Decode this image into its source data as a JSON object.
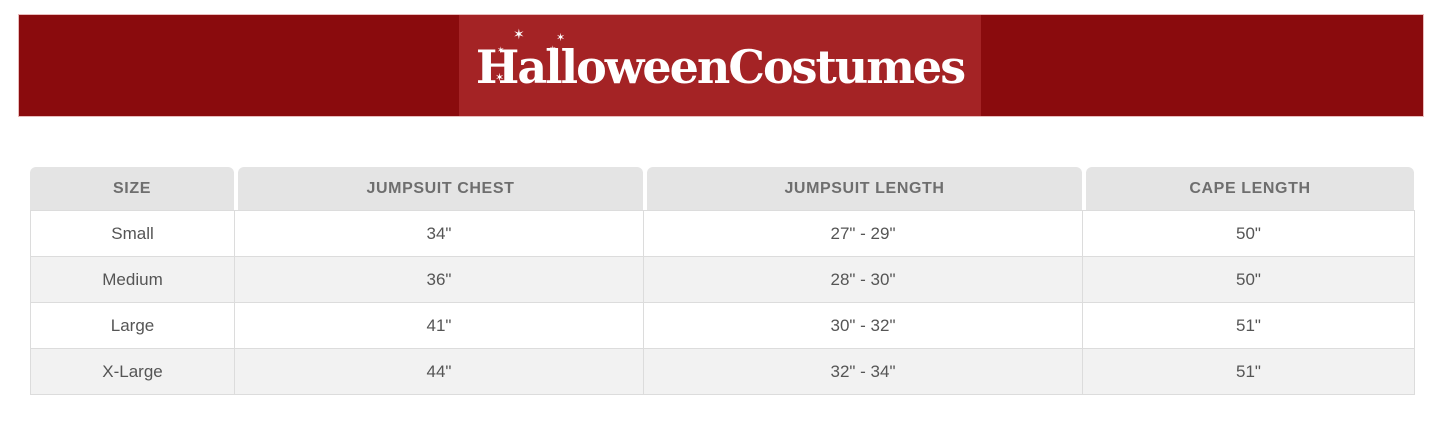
{
  "brand": {
    "logo_text": "HalloweenCostumes",
    "stars": [
      "✶",
      "✶",
      "✶",
      "✶",
      "✶",
      "✶"
    ]
  },
  "theme": {
    "banner_color": "#8a0b0d",
    "logo_panel_color": "#a42325",
    "logo_text_color": "#ffffff",
    "header_cell_bg": "#e4e4e4",
    "header_text_color": "#6e6e6e",
    "row_alt_bg": "#f2f2f2",
    "body_text_color": "#555555",
    "border_color": "#dcdcdc"
  },
  "size_chart": {
    "columns": [
      "SIZE",
      "JUMPSUIT CHEST",
      "JUMPSUIT LENGTH",
      "CAPE LENGTH"
    ],
    "rows": [
      [
        "Small",
        "34\"",
        "27\" - 29\"",
        "50\""
      ],
      [
        "Medium",
        "36\"",
        "28\" - 30\"",
        "50\""
      ],
      [
        "Large",
        "41\"",
        "30\" - 32\"",
        "51\""
      ],
      [
        "X-Large",
        "44\"",
        "32\" - 34\"",
        "51\""
      ]
    ]
  }
}
